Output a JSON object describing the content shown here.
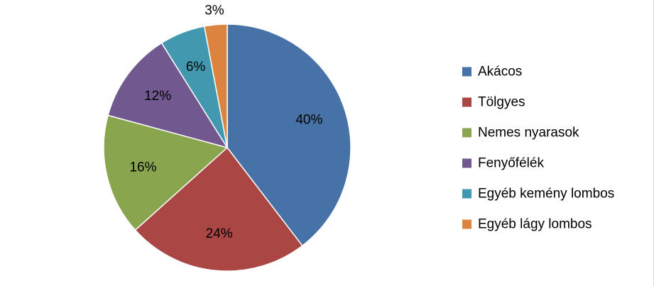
{
  "chart_data": {
    "type": "pie",
    "categories": [
      "Akácos",
      "Tölgyes",
      "Nemes nyarasok",
      "Fenyőfélék",
      "Egyéb kemény lombos",
      "Egyéb lágy lombos"
    ],
    "values": [
      40,
      24,
      16,
      12,
      6,
      3
    ],
    "value_labels": [
      "40%",
      "24%",
      "16%",
      "12%",
      "6%",
      "3%"
    ],
    "colors": [
      "#4672A8",
      "#AA4643",
      "#89A54E",
      "#71588F",
      "#4198AF",
      "#DB843D"
    ],
    "legend_position": "right",
    "start_angle": "12 o'clock",
    "direction": "clockwise"
  }
}
